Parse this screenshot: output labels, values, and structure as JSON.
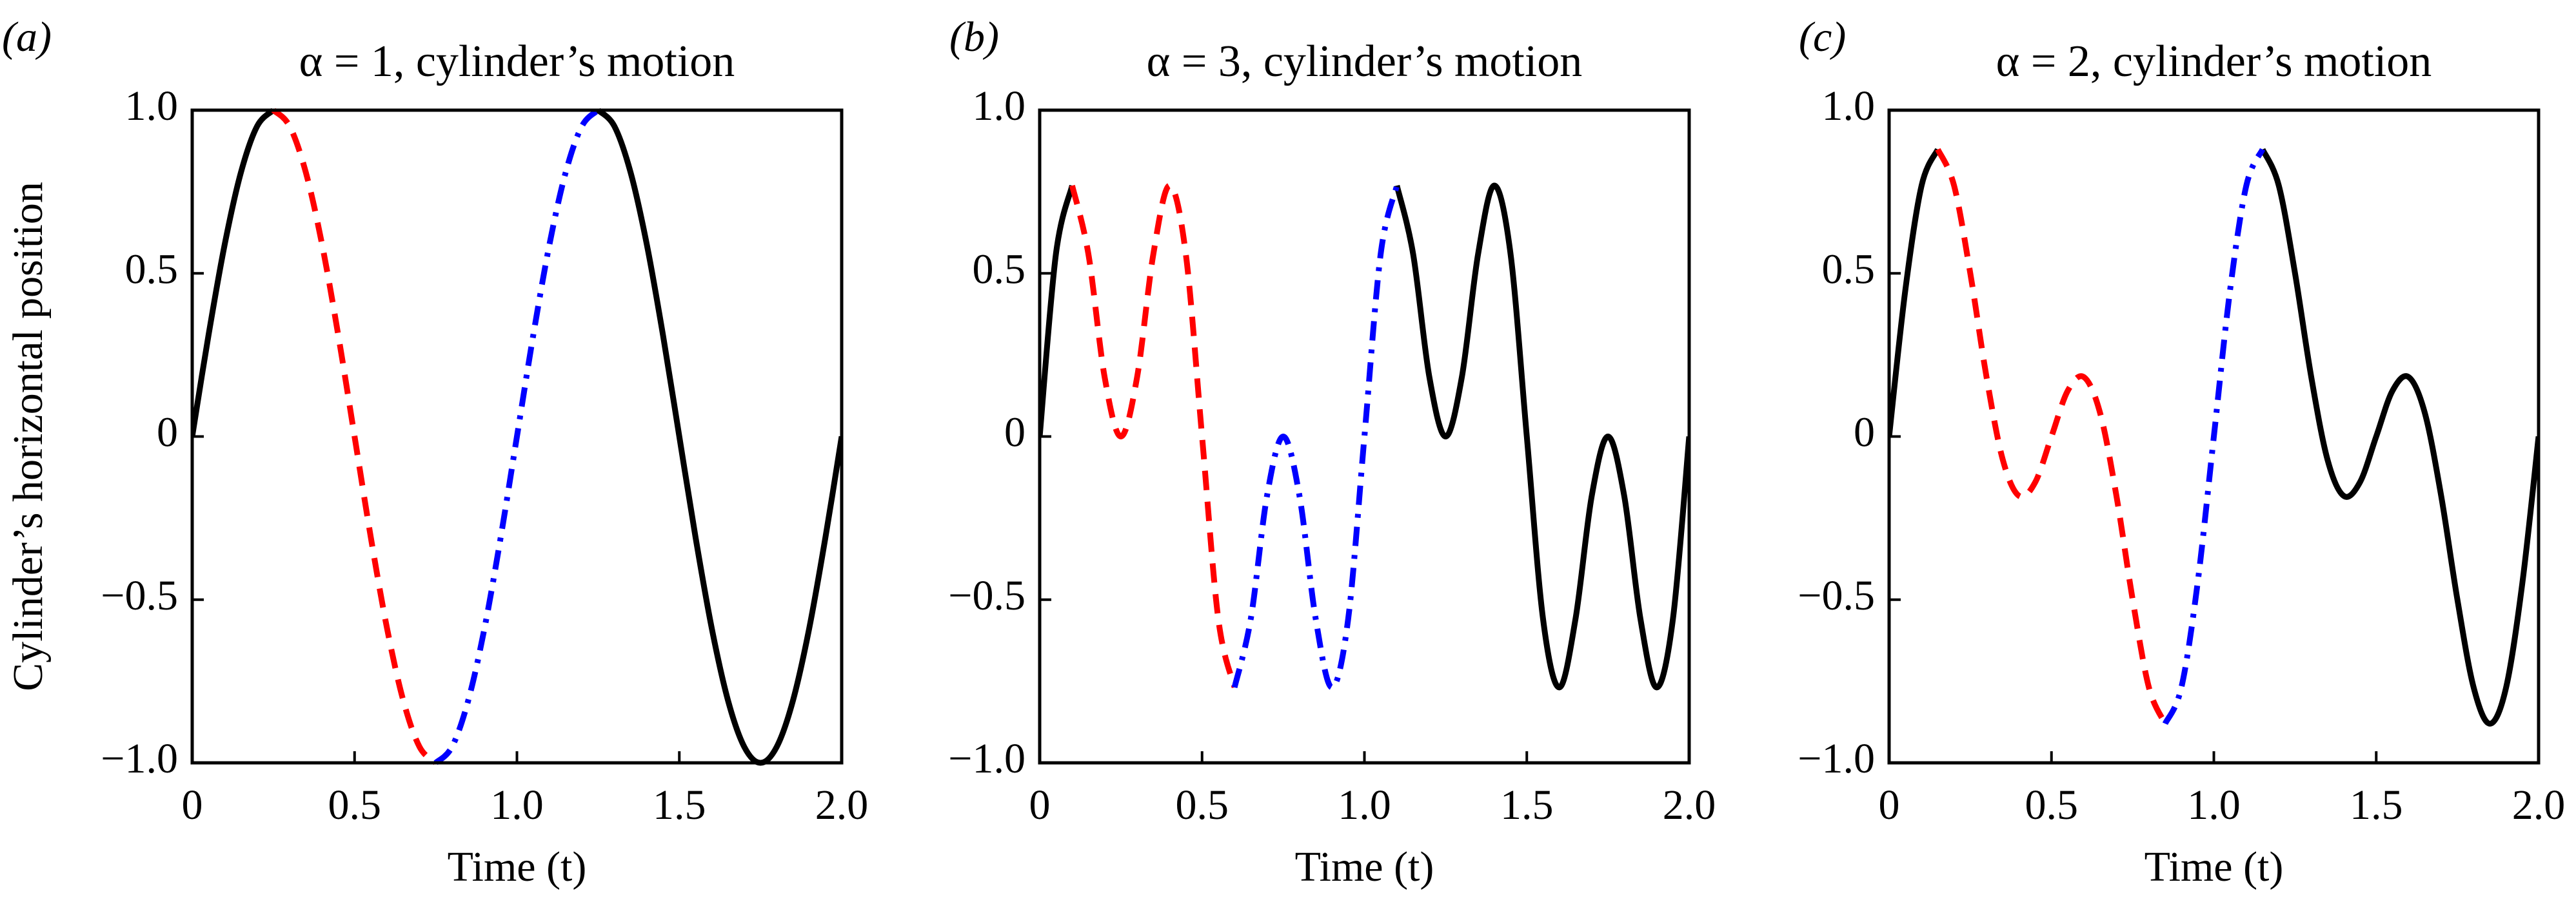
{
  "chart_data": [
    {
      "type": "line",
      "panel_label": "(a)",
      "title": "α = 1, cylinder’s motion",
      "xlabel": "Time (t)",
      "ylabel": "Cylinder’s horizontal position",
      "x": [
        0,
        0.05,
        0.1,
        0.15,
        0.2,
        0.25,
        0.3,
        0.35,
        0.4,
        0.45,
        0.5,
        0.55,
        0.6,
        0.65,
        0.7,
        0.75,
        0.8,
        0.85,
        0.9,
        0.95,
        1,
        1.05,
        1.1,
        1.15,
        1.2,
        1.25,
        1.3,
        1.35,
        1.4,
        1.45,
        1.5,
        1.55,
        1.6,
        1.65,
        1.7,
        1.75,
        1.8,
        1.85,
        1.9,
        1.95,
        2
      ],
      "xlim": [
        0,
        2
      ],
      "ylim": [
        -1,
        1
      ],
      "xticks": [
        0,
        0.5,
        {
          "value": 1,
          "label": "1.0"
        },
        1.5,
        {
          "value": 2,
          "label": "2.0"
        }
      ],
      "yticks": [
        {
          "value": -1,
          "label": "−1.0"
        },
        {
          "value": -0.5,
          "label": "−0.5"
        },
        0,
        0.5,
        {
          "value": 1,
          "label": "1.0"
        }
      ],
      "series": [
        {
          "color": "#000000",
          "dash": "solid",
          "values": [
            0,
            0.309,
            0.588,
            0.809,
            0.951,
            1,
            null,
            null,
            null,
            null,
            null,
            null,
            null,
            null,
            null,
            null,
            null,
            null,
            null,
            null,
            null,
            null,
            null,
            null,
            null,
            1,
            0.951,
            0.809,
            0.588,
            0.309,
            0,
            -0.309,
            -0.588,
            -0.809,
            -0.951,
            -1,
            -0.951,
            -0.809,
            -0.588,
            -0.309,
            0
          ]
        },
        {
          "color": "#ff0000",
          "dash": "dashed",
          "values": [
            null,
            null,
            null,
            null,
            null,
            1,
            0.951,
            0.809,
            0.588,
            0.309,
            0,
            -0.309,
            -0.588,
            -0.809,
            -0.951,
            -1,
            null,
            null,
            null,
            null,
            null,
            null,
            null,
            null,
            null,
            null,
            null,
            null,
            null,
            null,
            null,
            null,
            null,
            null,
            null,
            null,
            null,
            null,
            null,
            null,
            null
          ]
        },
        {
          "color": "#0000ff",
          "dash": "dashdot",
          "values": [
            null,
            null,
            null,
            null,
            null,
            null,
            null,
            null,
            null,
            null,
            null,
            null,
            null,
            null,
            null,
            -1,
            -0.951,
            -0.809,
            -0.588,
            -0.309,
            0,
            0.309,
            0.588,
            0.809,
            0.951,
            1,
            null,
            null,
            null,
            null,
            null,
            null,
            null,
            null,
            null,
            null,
            null,
            null,
            null,
            null,
            null
          ]
        }
      ]
    },
    {
      "type": "line",
      "panel_label": "(b)",
      "title": "α = 3, cylinder’s motion",
      "xlabel": "Time (t)",
      "x": [
        0,
        0.05,
        0.1,
        0.15,
        0.2,
        0.25,
        0.3,
        0.35,
        0.4,
        0.45,
        0.5,
        0.55,
        0.6,
        0.65,
        0.7,
        0.75,
        0.8,
        0.85,
        0.9,
        0.95,
        1,
        1.05,
        1.1,
        1.15,
        1.2,
        1.25,
        1.3,
        1.35,
        1.4,
        1.45,
        1.5,
        1.55,
        1.6,
        1.65,
        1.7,
        1.75,
        1.8,
        1.85,
        1.9,
        1.95,
        2
      ],
      "xlim": [
        0,
        2
      ],
      "ylim": [
        -1,
        1
      ],
      "xticks": [
        0,
        0.5,
        {
          "value": 1,
          "label": "1.0"
        },
        1.5,
        {
          "value": 2,
          "label": "2.0"
        }
      ],
      "yticks": [
        {
          "value": -1,
          "label": "−1.0"
        },
        {
          "value": -0.5,
          "label": "−0.5"
        },
        0,
        0.5,
        {
          "value": 1,
          "label": "1.0"
        }
      ],
      "series": [
        {
          "color": "#000000",
          "dash": "solid",
          "values": [
            0,
            0.559,
            0.769,
            null,
            null,
            null,
            null,
            null,
            null,
            null,
            null,
            null,
            null,
            null,
            null,
            null,
            null,
            null,
            null,
            null,
            null,
            null,
            0.769,
            0.559,
            0.182,
            0,
            0.182,
            0.559,
            0.769,
            0.559,
            0,
            -0.559,
            -0.769,
            -0.559,
            -0.182,
            0,
            -0.182,
            -0.559,
            -0.769,
            -0.559,
            0
          ]
        },
        {
          "color": "#ff0000",
          "dash": "dashed",
          "values": [
            null,
            null,
            0.769,
            0.559,
            0.182,
            0,
            0.182,
            0.559,
            0.769,
            0.559,
            0,
            -0.559,
            -0.769,
            null,
            null,
            null,
            null,
            null,
            null,
            null,
            null,
            null,
            null,
            null,
            null,
            null,
            null,
            null,
            null,
            null,
            null,
            null,
            null,
            null,
            null,
            null,
            null,
            null,
            null,
            null,
            null
          ]
        },
        {
          "color": "#0000ff",
          "dash": "dashdot",
          "values": [
            null,
            null,
            null,
            null,
            null,
            null,
            null,
            null,
            null,
            null,
            null,
            null,
            -0.769,
            -0.559,
            -0.182,
            0,
            -0.182,
            -0.559,
            -0.769,
            -0.559,
            0,
            0.559,
            0.769,
            null,
            null,
            null,
            null,
            null,
            null,
            null,
            null,
            null,
            null,
            null,
            null,
            null,
            null,
            null,
            null,
            null,
            null
          ]
        }
      ]
    },
    {
      "type": "line",
      "panel_label": "(c)",
      "title": "α = 2, cylinder’s motion",
      "xlabel": "Time (t)",
      "x": [
        0,
        0.05,
        0.1,
        0.15,
        0.2,
        0.25,
        0.3,
        0.35,
        0.4,
        0.45,
        0.5,
        0.55,
        0.6,
        0.65,
        0.7,
        0.75,
        0.8,
        0.85,
        0.9,
        0.95,
        1,
        1.05,
        1.1,
        1.15,
        1.2,
        1.25,
        1.3,
        1.35,
        1.4,
        1.45,
        1.5,
        1.55,
        1.6,
        1.65,
        1.7,
        1.75,
        1.8,
        1.85,
        1.9,
        1.95,
        2
      ],
      "xlim": [
        0,
        2
      ],
      "ylim": [
        -1,
        1
      ],
      "xticks": [
        0,
        0.5,
        {
          "value": 1,
          "label": "1.0"
        },
        1.5,
        {
          "value": 2,
          "label": "2.0"
        }
      ],
      "yticks": [
        {
          "value": -1,
          "label": "−1.0"
        },
        {
          "value": -0.5,
          "label": "−0.5"
        },
        0,
        0.5,
        {
          "value": 1,
          "label": "1.0"
        }
      ],
      "series": [
        {
          "color": "#000000",
          "dash": "solid",
          "values": [
            0,
            0.449,
            0.769,
            0.88,
            null,
            null,
            null,
            null,
            null,
            null,
            null,
            null,
            null,
            null,
            null,
            null,
            null,
            null,
            null,
            null,
            null,
            null,
            null,
            0.88,
            0.769,
            0.5,
            0.182,
            -0.071,
            -0.182,
            -0.14,
            0,
            0.14,
            0.182,
            0.071,
            -0.182,
            -0.5,
            -0.769,
            -0.88,
            -0.769,
            -0.449,
            0
          ]
        },
        {
          "color": "#ff0000",
          "dash": "dashed",
          "values": [
            null,
            null,
            null,
            0.88,
            0.769,
            0.5,
            0.182,
            -0.071,
            -0.182,
            -0.14,
            0,
            0.14,
            0.182,
            0.071,
            -0.182,
            -0.5,
            -0.769,
            -0.88,
            null,
            null,
            null,
            null,
            null,
            null,
            null,
            null,
            null,
            null,
            null,
            null,
            null,
            null,
            null,
            null,
            null,
            null,
            null,
            null,
            null,
            null,
            null
          ]
        },
        {
          "color": "#0000ff",
          "dash": "dashdot",
          "values": [
            null,
            null,
            null,
            null,
            null,
            null,
            null,
            null,
            null,
            null,
            null,
            null,
            null,
            null,
            null,
            null,
            null,
            -0.88,
            -0.769,
            -0.449,
            0,
            0.449,
            0.769,
            0.88,
            null,
            null,
            null,
            null,
            null,
            null,
            null,
            null,
            null,
            null,
            null,
            null,
            null,
            null,
            null,
            null,
            null
          ]
        }
      ]
    }
  ]
}
